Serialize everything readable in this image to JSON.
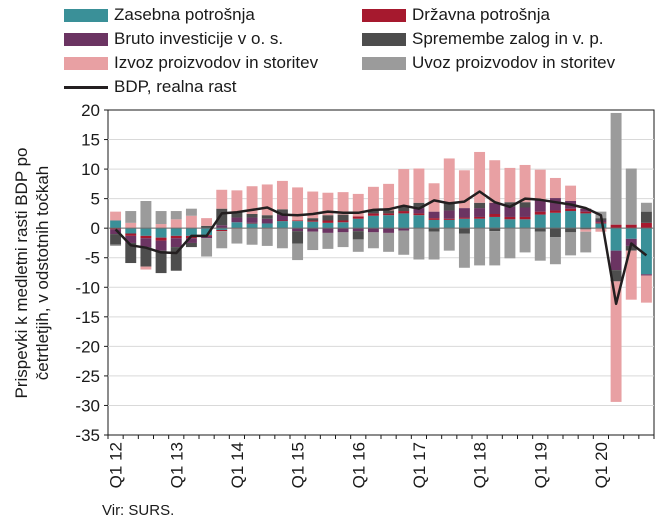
{
  "legend": {
    "private": "Zasebna potrošnja",
    "government": "Državna potrošnja",
    "investment": "Bruto investicije v o. s.",
    "inventories": "Spremembe zalog in v. p.",
    "exports": "Izvoz proizvodov in storitev",
    "imports": "Uvoz proizvodov in storitev",
    "gdp": "BDP, realna rast"
  },
  "ylabel": "Prispevki k medletni rasti BDP po četrtletjih, v odstotnih točkah",
  "source": "Vir: SURS.",
  "chart_data": {
    "type": "bar",
    "stacked": true,
    "categories": [
      "Q1 12",
      "Q2 12",
      "Q3 12",
      "Q4 12",
      "Q1 13",
      "Q2 13",
      "Q3 13",
      "Q4 13",
      "Q1 14",
      "Q2 14",
      "Q3 14",
      "Q4 14",
      "Q1 15",
      "Q2 15",
      "Q3 15",
      "Q4 15",
      "Q1 16",
      "Q2 16",
      "Q3 16",
      "Q4 16",
      "Q1 17",
      "Q2 17",
      "Q3 17",
      "Q4 17",
      "Q1 18",
      "Q2 18",
      "Q3 18",
      "Q4 18",
      "Q1 19",
      "Q2 19",
      "Q3 19",
      "Q4 19",
      "Q1 20",
      "Q2 20",
      "Q3 20",
      "Q4 20"
    ],
    "tick_labels": [
      "Q1 12",
      "Q1 13",
      "Q1 14",
      "Q1 15",
      "Q1 16",
      "Q1 17",
      "Q1 18",
      "Q1 19",
      "Q1 20"
    ],
    "ylim": [
      -35,
      20
    ],
    "yticks": [
      -35,
      -30,
      -25,
      -20,
      -15,
      -10,
      -5,
      0,
      5,
      10,
      15,
      20
    ],
    "colors": {
      "private": "#3a9098",
      "government": "#a6192e",
      "investment": "#6b3462",
      "inventories": "#4d4d4d",
      "exports": "#e8a0a3",
      "imports": "#9b9b9b",
      "gdp": "#231f20"
    },
    "series": [
      {
        "key": "private",
        "name": "Zasebna potrošnja",
        "values": [
          1.3,
          -0.9,
          -1.3,
          -1.6,
          -1.3,
          -1.3,
          -1.2,
          -0.3,
          1.0,
          0.8,
          0.8,
          1.2,
          1.2,
          1.1,
          0.9,
          1.0,
          1.6,
          2.1,
          2.2,
          2.5,
          2.2,
          1.4,
          1.4,
          1.6,
          1.6,
          1.9,
          1.5,
          1.5,
          2.3,
          2.6,
          2.9,
          2.5,
          0.8,
          -3.8,
          -1.8,
          -7.8
        ]
      },
      {
        "key": "government",
        "name": "Državna potrošnja",
        "values": [
          -0.2,
          -0.4,
          -0.4,
          -0.5,
          -0.4,
          -0.4,
          -0.2,
          -0.2,
          -0.1,
          0.1,
          -0.1,
          0.1,
          0.1,
          0.2,
          0.4,
          0.3,
          0.4,
          0.4,
          0.3,
          0.4,
          0.3,
          0.3,
          0.2,
          0.2,
          0.3,
          0.5,
          0.4,
          0.4,
          0.5,
          0.4,
          0.4,
          0.3,
          0.2,
          0.6,
          0.6,
          0.9
        ]
      },
      {
        "key": "investment",
        "name": "Bruto investicije v o. s.",
        "values": [
          -0.8,
          -1.2,
          -1.5,
          -1.7,
          -1.5,
          -0.8,
          -0.3,
          0.5,
          0.8,
          0.9,
          0.8,
          1.0,
          -0.5,
          -0.6,
          -0.8,
          -0.7,
          -0.5,
          -0.7,
          -0.8,
          -0.4,
          0.9,
          1.1,
          1.4,
          1.6,
          1.5,
          1.9,
          1.7,
          1.6,
          2.0,
          2.1,
          1.3,
          0.5,
          0.3,
          -3.3,
          -1.2,
          -0.2
        ]
      },
      {
        "key": "inventories",
        "name": "Spremembe zalog in v. p.",
        "values": [
          -1.8,
          -3.4,
          -3.3,
          -3.8,
          -4.0,
          -0.7,
          0.4,
          2.8,
          1.0,
          0.6,
          0.6,
          0.9,
          -2.1,
          0.4,
          0.9,
          1.0,
          -1.4,
          0.6,
          0.5,
          0.8,
          0.9,
          -0.6,
          1.4,
          -0.9,
          0.9,
          -0.5,
          0.8,
          0.9,
          -0.6,
          -1.5,
          -0.7,
          -0.2,
          0.4,
          -1.9,
          -0.8,
          1.9
        ]
      },
      {
        "key": "exports",
        "name": "Izvoz proizvodov in storitev",
        "values": [
          1.5,
          0.9,
          -0.5,
          0.7,
          1.5,
          2.1,
          1.3,
          3.2,
          3.6,
          4.7,
          5.2,
          4.8,
          5.6,
          4.5,
          3.8,
          3.8,
          3.8,
          3.9,
          4.5,
          6.3,
          5.8,
          4.8,
          7.4,
          6.4,
          8.6,
          7.2,
          5.8,
          6.3,
          5.1,
          3.4,
          2.6,
          -0.4,
          -0.6,
          -20.4,
          -8.3,
          -4.6
        ]
      },
      {
        "key": "imports",
        "name": "Uvoz proizvodov in storitev",
        "values": [
          -0.2,
          2.0,
          4.6,
          2.2,
          1.4,
          1.2,
          -3.1,
          -2.9,
          -2.5,
          -2.8,
          -2.9,
          -3.4,
          -2.8,
          -3.1,
          -2.7,
          -2.5,
          -2.1,
          -2.7,
          -3.2,
          -4.1,
          -5.3,
          -4.7,
          -3.8,
          -5.8,
          -6.3,
          -5.8,
          -5.1,
          -4.1,
          -4.9,
          -4.6,
          -3.9,
          -3.5,
          1.1,
          18.9,
          9.5,
          1.5
        ]
      }
    ],
    "line": {
      "key": "gdp",
      "name": "BDP, realna rast",
      "values": [
        -0.2,
        -2.9,
        -3.3,
        -4.1,
        -4.2,
        -1.3,
        -1.3,
        2.5,
        2.7,
        3.1,
        3.5,
        2.3,
        2.2,
        2.4,
        2.8,
        2.6,
        2.6,
        3.1,
        3.2,
        3.8,
        3.3,
        4.7,
        4.2,
        4.5,
        6.2,
        4.4,
        3.6,
        5.0,
        4.8,
        4.4,
        4.0,
        3.4,
        2.2,
        -12.8,
        -2.6,
        -4.6
      ]
    }
  }
}
